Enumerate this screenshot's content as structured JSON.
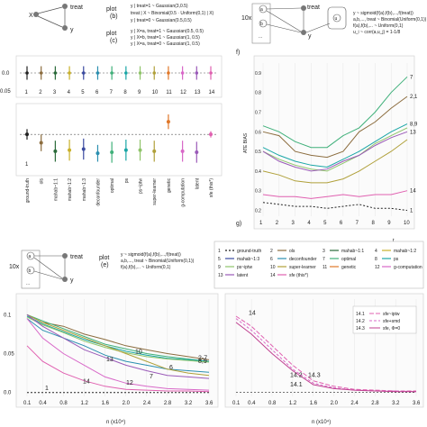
{
  "panel_letters": {
    "f": "f)",
    "g": "g)"
  },
  "diagrams": {
    "left": {
      "nodes": {
        "x": "X",
        "treat": "treat",
        "y": "y"
      }
    },
    "mid": {
      "plot_b_label": "plot\n(b)",
      "plot_c_label": "plot\n(c)",
      "eq_b": [
        "y | treat=1 ~ Gaussian(3,0.5)",
        "y | treat=0 ~ Gaussian(0.5,0.5)",
        "treat | X ~ Binomial(0.5 · Uniform(0,1) | X)"
      ],
      "eq_c": [
        "y | X=a, treat=1 ~ Gaussian(0.5, 0.5)",
        "y | X=b, treat=1 ~ Gaussian(1, 0.5)",
        "y | X=a, treat=0 ~ Gaussian(1, 0.5)"
      ]
    },
    "right": {
      "multiplier": "10x",
      "nodes": {
        "a": "a",
        "b": "b",
        "dots": "...",
        "treat": "treat",
        "y": "y",
        "u": "u"
      },
      "eq": [
        "y ~ sigmoid(f(a),f(b),...,f(treat))",
        "a,b,..., treat ~ Binomial(Uniform(0,1))",
        "f(a),f(b),... ~ Uniform(0,1)",
        "u_i ~ corr(a,u_j) = 1-1/8"
      ]
    },
    "bottom": {
      "multiplier": "10x",
      "nodes": {
        "a": "a",
        "b": "b",
        "dots": "...",
        "treat": "treat",
        "y": "y"
      },
      "plot_label": "plot\n(e)",
      "eq": [
        "y ~ sigmoid(f(a),f(b),...,f(treat))",
        "a,b,..., treat ~ Binomial(Uniform(0,1))",
        "f(a),f(b),... ~ Uniform(0,1)"
      ]
    }
  },
  "legend": {
    "items": [
      {
        "num": "1",
        "label": "ground-truth",
        "color": "#222222",
        "dash": "2,2"
      },
      {
        "num": "2",
        "label": "ols",
        "color": "#8c6d3f",
        "dash": ""
      },
      {
        "num": "3",
        "label": "mahab~1:1",
        "color": "#2a6b3a",
        "dash": ""
      },
      {
        "num": "4",
        "label": "mahab~1:2",
        "color": "#c9b12a",
        "dash": ""
      },
      {
        "num": "5",
        "label": "mahab~1:3",
        "color": "#3a4aa0",
        "dash": ""
      },
      {
        "num": "6",
        "label": "deconfounder",
        "color": "#2b8fb0",
        "dash": ""
      },
      {
        "num": "7",
        "label": "optimal",
        "color": "#3fb07a",
        "dash": ""
      },
      {
        "num": "8",
        "label": "ps",
        "color": "#1aa6a6",
        "dash": ""
      },
      {
        "num": "9",
        "label": "ps~iptw",
        "color": "#8fc46a",
        "dash": ""
      },
      {
        "num": "10",
        "label": "super-learner",
        "color": "#b0a03a",
        "dash": ""
      },
      {
        "num": "11",
        "label": "genetic",
        "color": "#e0782a",
        "dash": ""
      },
      {
        "num": "12",
        "label": "g-computation",
        "color": "#d868c8",
        "dash": ""
      },
      {
        "num": "13",
        "label": "latent",
        "color": "#9a5ab8",
        "dash": ""
      },
      {
        "num": "14",
        "label": "sfe (this*)",
        "color": "#e060b0",
        "dash": ""
      }
    ]
  },
  "chart_data": [
    {
      "type": "scatter",
      "name": "panel-d",
      "categories": [
        "1",
        "2",
        "3",
        "4",
        "5",
        "6",
        "7",
        "8",
        "9",
        "10",
        "11",
        "12",
        "13",
        "14"
      ],
      "values": [
        0,
        0,
        0,
        0,
        0,
        0,
        0,
        0,
        0,
        0,
        0,
        0,
        0,
        0
      ],
      "err": [
        0.03,
        0.03,
        0.03,
        0.03,
        0.03,
        0.03,
        0.03,
        0.03,
        0.03,
        0.03,
        0.03,
        0.03,
        0.03,
        0.03
      ],
      "yticks": [
        "0.0",
        "0.05"
      ],
      "ylim": [
        -0.06,
        0.06
      ]
    },
    {
      "type": "scatter",
      "name": "panel-e-results",
      "categories": [
        "ground-truth",
        "ols",
        "mahab~1:1",
        "mahab~1:2",
        "mahab~1:3",
        "deconfounder",
        "optimal",
        "ps",
        "ps~iptw",
        "super-learner",
        "genetic",
        "g-computation",
        "latent",
        "sfe (this*)"
      ],
      "point_label": "1",
      "values": [
        0.0,
        -0.08,
        -0.16,
        -0.15,
        -0.14,
        -0.18,
        -0.17,
        -0.15,
        -0.15,
        -0.16,
        0.12,
        -0.16,
        -0.17,
        0.0
      ],
      "err": [
        0.05,
        0.08,
        0.1,
        0.1,
        0.1,
        0.08,
        0.1,
        0.1,
        0.1,
        0.1,
        0.07,
        0.1,
        0.1,
        0.03
      ],
      "ylim": [
        -0.35,
        0.25
      ]
    },
    {
      "type": "line",
      "name": "panel-f",
      "title": "f)",
      "ylabel": "ATE BIAS",
      "xlabel": "t",
      "x": [
        1,
        2,
        3,
        4,
        5,
        6,
        7,
        8,
        9,
        10
      ],
      "xticks": [
        "1",
        "2",
        "3",
        "4",
        "5",
        "6",
        "7",
        "8",
        "9",
        "10"
      ],
      "yticks": [
        "0.2",
        "0.3",
        "0.4",
        "0.5",
        "0.6",
        "0.7",
        "0.8",
        "0.9"
      ],
      "ylim": [
        0.17,
        0.95
      ],
      "series": [
        {
          "name": "1",
          "color": "#222222",
          "dash": "2,2",
          "values": [
            0.24,
            0.23,
            0.22,
            0.22,
            0.21,
            0.22,
            0.23,
            0.21,
            0.21,
            0.2
          ]
        },
        {
          "name": "7",
          "color": "#3fb07a",
          "values": [
            0.63,
            0.6,
            0.55,
            0.52,
            0.52,
            0.58,
            0.62,
            0.7,
            0.8,
            0.88
          ]
        },
        {
          "name": "2",
          "color": "#8c6d3f",
          "values": [
            0.6,
            0.58,
            0.5,
            0.48,
            0.47,
            0.5,
            0.6,
            0.65,
            0.72,
            0.78
          ]
        },
        {
          "name": "8",
          "color": "#1aa6a6",
          "values": [
            0.52,
            0.48,
            0.45,
            0.43,
            0.42,
            0.46,
            0.5,
            0.55,
            0.6,
            0.64
          ]
        },
        {
          "name": "9",
          "color": "#8fc46a",
          "values": [
            0.5,
            0.46,
            0.43,
            0.41,
            0.4,
            0.44,
            0.48,
            0.54,
            0.58,
            0.62
          ]
        },
        {
          "name": "10",
          "color": "#b0a03a",
          "values": [
            0.4,
            0.38,
            0.35,
            0.34,
            0.34,
            0.36,
            0.4,
            0.45,
            0.5,
            0.56
          ]
        },
        {
          "name": "13",
          "color": "#9a5ab8",
          "values": [
            0.5,
            0.45,
            0.42,
            0.4,
            0.41,
            0.45,
            0.48,
            0.53,
            0.57,
            0.6
          ]
        },
        {
          "name": "14",
          "color": "#e060b0",
          "values": [
            0.28,
            0.27,
            0.27,
            0.26,
            0.27,
            0.28,
            0.27,
            0.28,
            0.28,
            0.3
          ]
        }
      ],
      "end_labels": [
        "7",
        "2,1",
        "8,9",
        "13",
        "14",
        "1"
      ]
    },
    {
      "type": "line",
      "name": "panel-h-left",
      "xlabel": "n (x10⁴)",
      "x": [
        0.1,
        0.4,
        0.8,
        1.2,
        1.6,
        2.0,
        2.4,
        2.8,
        3.2,
        3.6
      ],
      "xticks": [
        "0.1",
        "0.4",
        "0.8",
        "1.2",
        "1.6",
        "2.0",
        "2.4",
        "2.8",
        "3.2",
        "3.6"
      ],
      "yticks": [
        "0.1",
        "0.05",
        "0.0"
      ],
      "ylim": [
        -0.005,
        0.12
      ],
      "series": [
        {
          "name": "1",
          "color": "#222222",
          "dash": "2,2",
          "values": [
            0,
            0,
            0,
            0,
            0,
            0,
            0,
            0,
            0,
            0
          ]
        },
        {
          "name": "2",
          "color": "#8c6d3f",
          "values": [
            0.1,
            0.09,
            0.085,
            0.075,
            0.068,
            0.06,
            0.055,
            0.05,
            0.046,
            0.042
          ]
        },
        {
          "name": "7",
          "color": "#3fb07a",
          "values": [
            0.1,
            0.092,
            0.082,
            0.072,
            0.062,
            0.056,
            0.05,
            0.046,
            0.043,
            0.04
          ]
        },
        {
          "name": "8",
          "color": "#1aa6a6",
          "values": [
            0.098,
            0.088,
            0.078,
            0.068,
            0.06,
            0.053,
            0.048,
            0.044,
            0.042,
            0.04
          ]
        },
        {
          "name": "9",
          "color": "#8fc46a",
          "values": [
            0.097,
            0.087,
            0.077,
            0.066,
            0.058,
            0.051,
            0.046,
            0.043,
            0.041,
            0.039
          ]
        },
        {
          "name": "6",
          "color": "#2b8fb0",
          "values": [
            0.095,
            0.08,
            0.07,
            0.06,
            0.048,
            0.04,
            0.035,
            0.03,
            0.028,
            0.026
          ]
        },
        {
          "name": "10",
          "color": "#b0a03a",
          "values": [
            0.1,
            0.09,
            0.08,
            0.07,
            0.06,
            0.05,
            0.04,
            0.03,
            0.025,
            0.022
          ]
        },
        {
          "name": "13",
          "color": "#9a5ab8",
          "values": [
            0.1,
            0.085,
            0.07,
            0.055,
            0.045,
            0.035,
            0.028,
            0.022,
            0.02,
            0.018
          ]
        },
        {
          "name": "12",
          "color": "#d868c8",
          "values": [
            0.095,
            0.07,
            0.05,
            0.035,
            0.02,
            0.012,
            0.008,
            0.005,
            0.004,
            0.003
          ]
        },
        {
          "name": "14",
          "color": "#e060b0",
          "values": [
            0.06,
            0.04,
            0.025,
            0.015,
            0.008,
            0.004,
            0.003,
            0.002,
            0.002,
            0.001
          ]
        }
      ],
      "labels": [
        "2-7",
        "8,9",
        "10",
        "13",
        "6",
        "7",
        "12",
        "14",
        "1"
      ]
    },
    {
      "type": "line",
      "name": "panel-h-right",
      "xlabel": "n (x10⁴)",
      "x": [
        0.1,
        0.4,
        0.8,
        1.2,
        1.6,
        2.0,
        2.4,
        2.8,
        3.2,
        3.6
      ],
      "xticks": [
        "0.1",
        "0.4",
        "0.8",
        "1.2",
        "1.6",
        "2.0",
        "2.4",
        "2.8",
        "3.2",
        "3.6"
      ],
      "ylim": [
        -0.005,
        0.12
      ],
      "series": [
        {
          "name": "14.1",
          "label": "sfe~iptw",
          "color": "#e060b0",
          "dash": "5,2",
          "values": [
            0.098,
            0.085,
            0.06,
            0.035,
            0.015,
            0.008,
            0.004,
            0.003,
            0.002,
            0.002
          ]
        },
        {
          "name": "14.2",
          "label": "sfe+smd",
          "color": "#d868c8",
          "dash": "3,2",
          "values": [
            0.095,
            0.08,
            0.055,
            0.03,
            0.012,
            0.006,
            0.003,
            0.002,
            0.002,
            0.001
          ]
        },
        {
          "name": "14.3",
          "label": "sfe, Φ=0",
          "color": "#c04090",
          "dash": "",
          "values": [
            0.09,
            0.075,
            0.05,
            0.028,
            0.01,
            0.005,
            0.003,
            0.002,
            0.001,
            0.001
          ]
        }
      ],
      "labels": [
        "14",
        "14.2",
        "14.3",
        "14.1"
      ]
    }
  ]
}
